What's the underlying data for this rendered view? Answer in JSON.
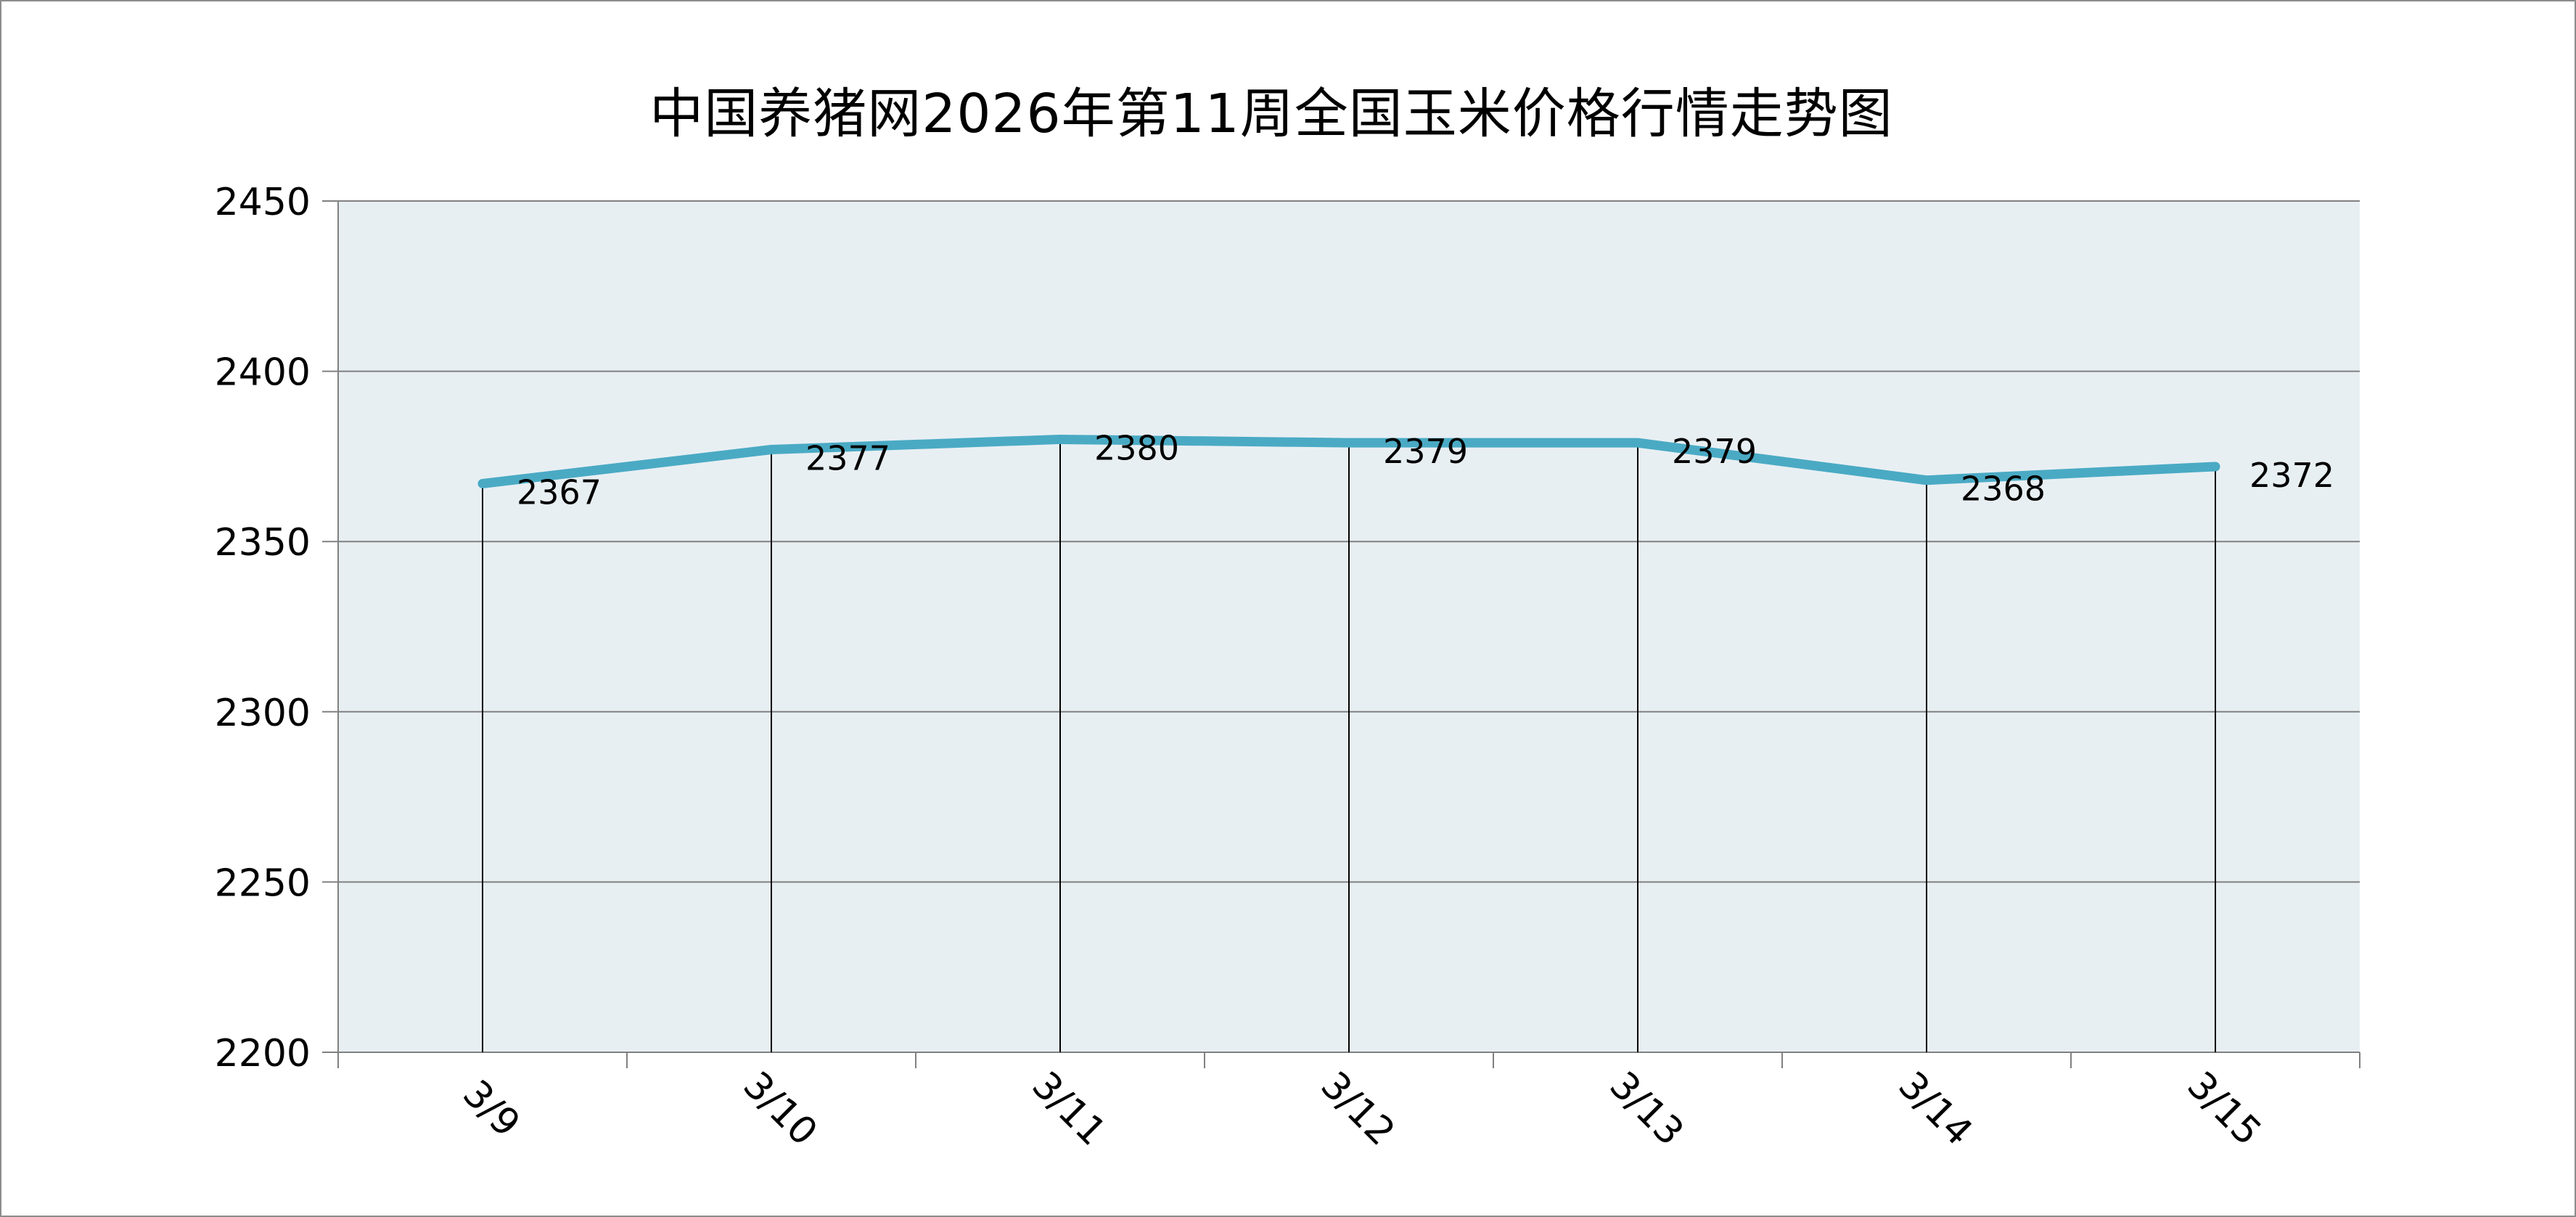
{
  "chart_data": {
    "type": "line",
    "title": "中国养猪网2026年第11周全国玉米价格行情走势图",
    "categories": [
      "3/9",
      "3/10",
      "3/11",
      "3/12",
      "3/13",
      "3/14",
      "3/15"
    ],
    "series": [
      {
        "values": [
          2367,
          2377,
          2380,
          2379,
          2379,
          2368,
          2372
        ]
      }
    ],
    "ylim": [
      2200,
      2450
    ],
    "yticks": [
      2200,
      2250,
      2300,
      2350,
      2400,
      2450
    ],
    "xlabel": "",
    "ylabel": "",
    "grid": true,
    "drop_lines": true,
    "legend": "none",
    "colors": {
      "line": "#4aaac4",
      "plot_bg": "#e8eff3",
      "gridline": "#808080",
      "drop_line": "#000000"
    }
  }
}
